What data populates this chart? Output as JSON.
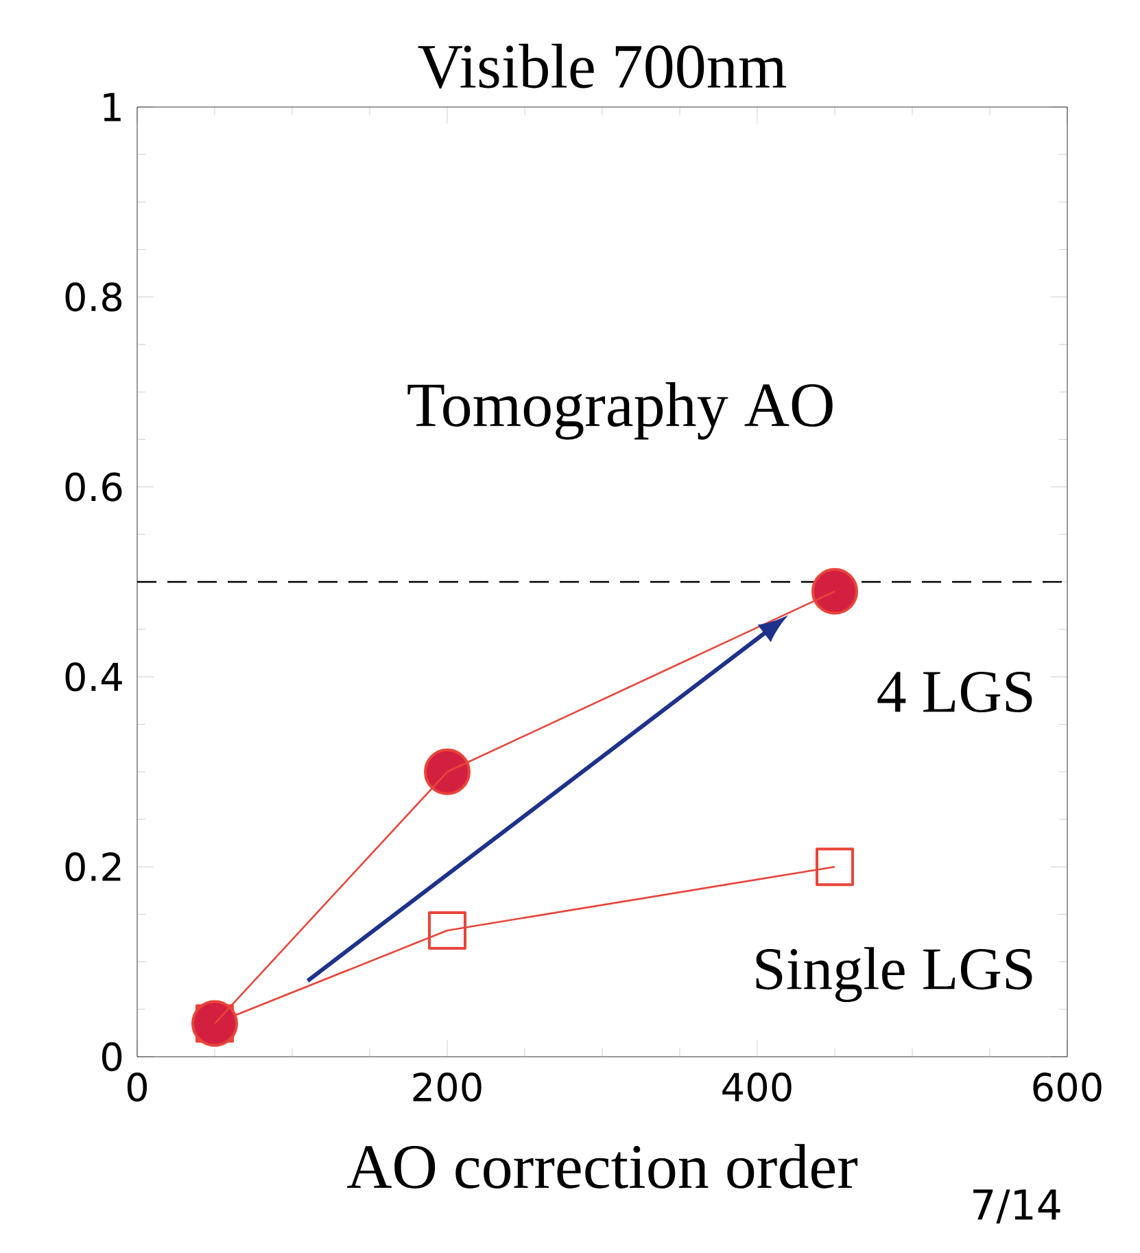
{
  "chart_data": {
    "type": "line",
    "title": "Visible 700nm",
    "xlabel": "AO correction order",
    "xlim": [
      0,
      600
    ],
    "xticks": [
      0,
      200,
      400,
      600
    ],
    "ylim": [
      0,
      1
    ],
    "yticks": [
      0,
      0.2,
      0.4,
      0.6,
      0.8,
      1
    ],
    "series": [
      {
        "name": "4 LGS",
        "color": "#e8453a",
        "marker": "circle",
        "x": [
          50,
          200,
          450
        ],
        "values": [
          0.035,
          0.3,
          0.49
        ]
      },
      {
        "name": "Single LGS",
        "color": "#e8453a",
        "marker": "square",
        "x": [
          50,
          200,
          450
        ],
        "values": [
          0.035,
          0.133,
          0.2
        ]
      }
    ],
    "ref_lines": [
      {
        "axis": "y",
        "value": 0.5,
        "line_style": "dashed",
        "color": "#000000"
      }
    ],
    "annotations": [
      "Tomography AO",
      "7/14"
    ]
  }
}
